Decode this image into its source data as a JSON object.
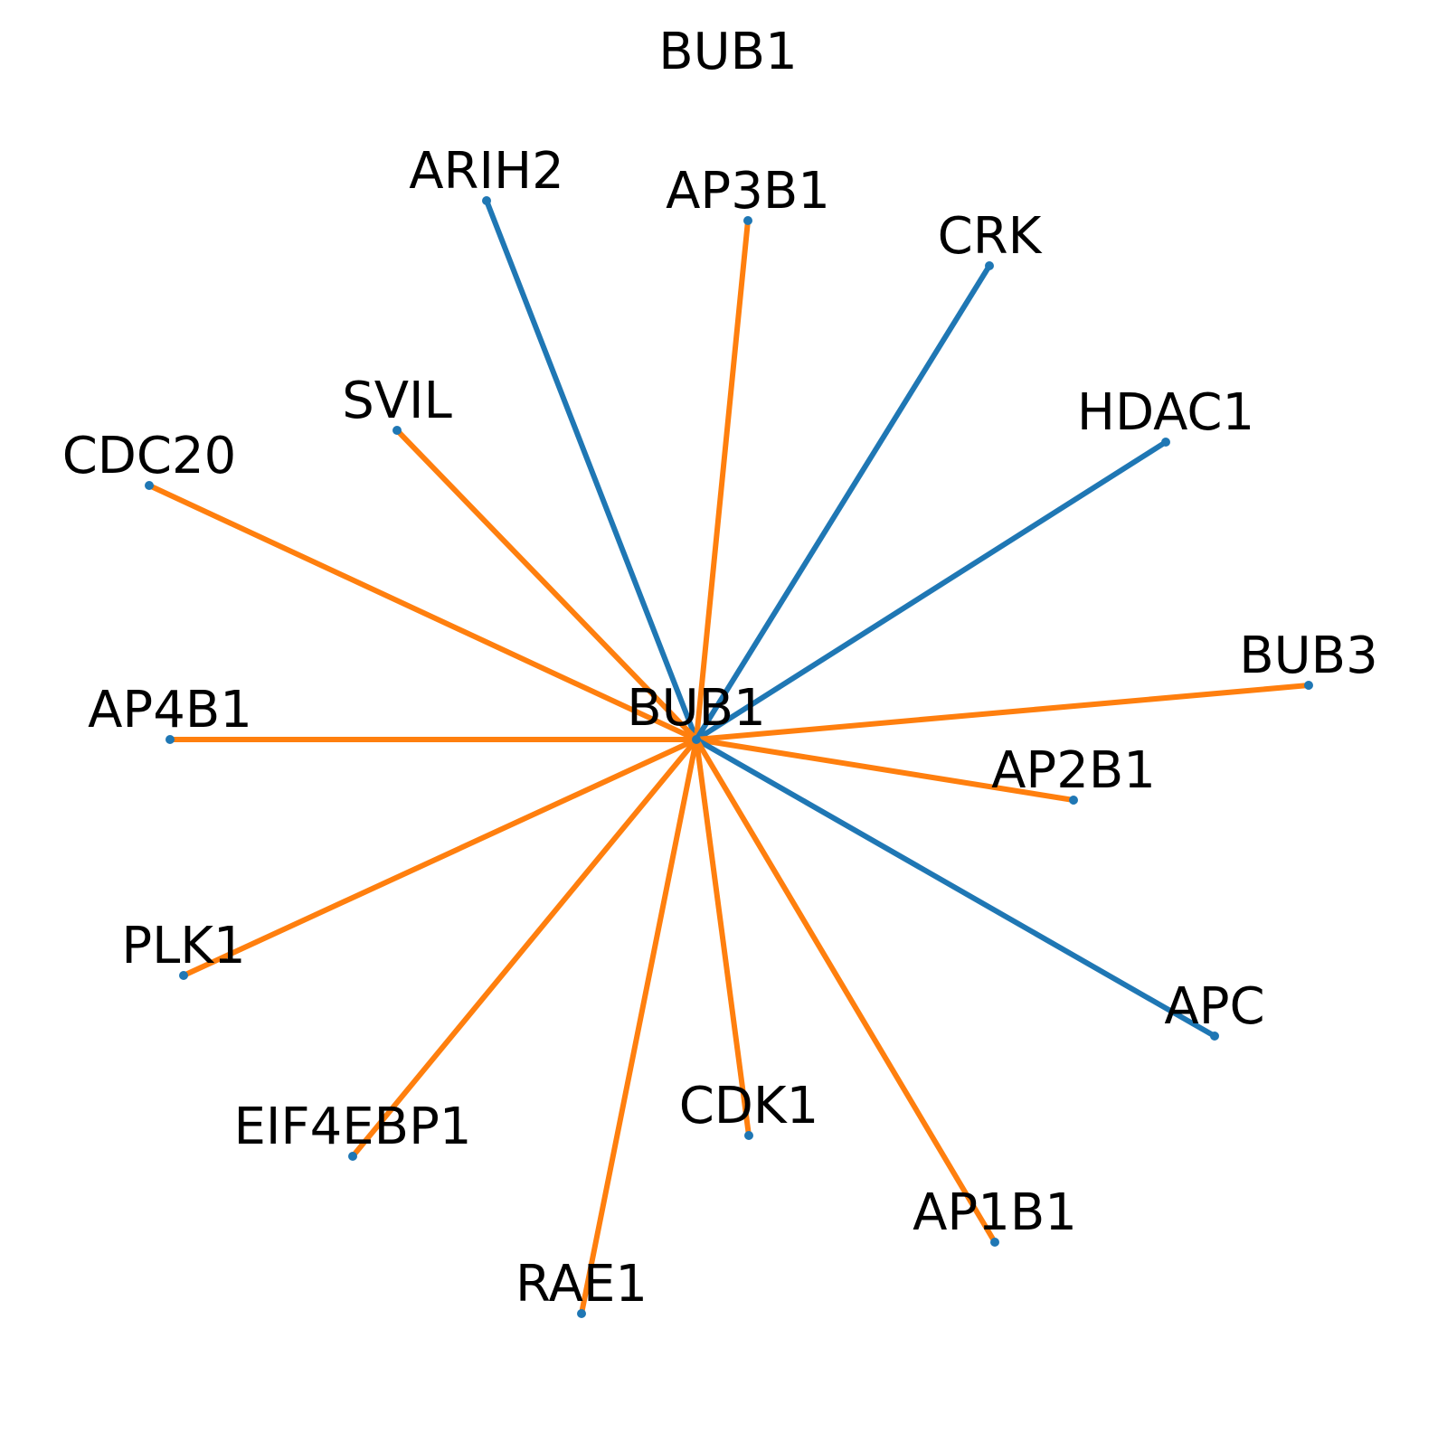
{
  "title": "BUB1",
  "center": {
    "id": "BUB1",
    "label": "BUB1"
  },
  "colors": {
    "blue": "#1f77b4",
    "orange": "#ff7f0e"
  },
  "nodes": [
    {
      "id": "ARIH2",
      "label": "ARIH2",
      "edge_color": "blue"
    },
    {
      "id": "AP3B1",
      "label": "AP3B1",
      "edge_color": "orange"
    },
    {
      "id": "CRK",
      "label": "CRK",
      "edge_color": "blue"
    },
    {
      "id": "HDAC1",
      "label": "HDAC1",
      "edge_color": "blue"
    },
    {
      "id": "BUB3",
      "label": "BUB3",
      "edge_color": "orange"
    },
    {
      "id": "AP2B1",
      "label": "AP2B1",
      "edge_color": "orange"
    },
    {
      "id": "APC",
      "label": "APC",
      "edge_color": "blue"
    },
    {
      "id": "AP1B1",
      "label": "AP1B1",
      "edge_color": "orange"
    },
    {
      "id": "CDK1",
      "label": "CDK1",
      "edge_color": "orange"
    },
    {
      "id": "RAE1",
      "label": "RAE1",
      "edge_color": "orange"
    },
    {
      "id": "EIF4EBP1",
      "label": "EIF4EBP1",
      "edge_color": "orange"
    },
    {
      "id": "PLK1",
      "label": "PLK1",
      "edge_color": "orange"
    },
    {
      "id": "AP4B1",
      "label": "AP4B1",
      "edge_color": "orange"
    },
    {
      "id": "CDC20",
      "label": "CDC20",
      "edge_color": "orange"
    },
    {
      "id": "SVIL",
      "label": "SVIL",
      "edge_color": "orange"
    }
  ]
}
